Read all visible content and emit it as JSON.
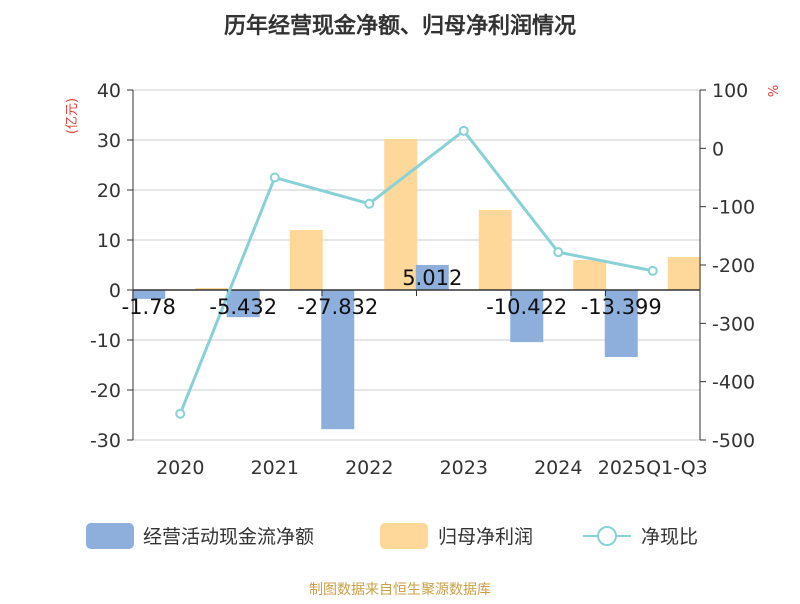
{
  "chart_data": {
    "type": "bar+line",
    "title": "历年经营现金净额、归母净利润情况",
    "categories": [
      "2020",
      "2021",
      "2022",
      "2023",
      "2024",
      "2025Q1-Q3"
    ],
    "series": [
      {
        "name": "经营活动现金流净额",
        "type": "bar",
        "axis": "left",
        "color": "#8eaedc",
        "values": [
          -1.78,
          -5.432,
          -27.832,
          5.012,
          -10.422,
          -13.399
        ],
        "labels": [
          "-1.78",
          "-5.432",
          "-27.832",
          "5.012",
          "-10.422",
          "-13.399"
        ]
      },
      {
        "name": "归母净利润",
        "type": "bar",
        "axis": "left",
        "color": "#fdd89a",
        "values": [
          0.4,
          12,
          30.2,
          16,
          6,
          6.6
        ]
      },
      {
        "name": "净现比",
        "type": "line",
        "axis": "right",
        "color": "#88d1d6",
        "values": [
          -455,
          -50,
          -95,
          30,
          -178,
          -210
        ]
      }
    ],
    "left_axis": {
      "unit": "(亿元)",
      "min": -30,
      "max": 40,
      "ticks": [
        -30,
        -20,
        -10,
        0,
        10,
        20,
        30,
        40
      ]
    },
    "right_axis": {
      "unit": "%",
      "min": -500,
      "max": 100,
      "ticks": [
        -500,
        -400,
        -300,
        -200,
        -100,
        0,
        100
      ]
    },
    "grid": true,
    "legend_position": "bottom"
  },
  "source_note": "制图数据来自恒生聚源数据库",
  "colors": {
    "unit_label": "#e03c3c",
    "source_note": "#c9a046",
    "axis": "#333333",
    "grid": "#cccccc",
    "text": "#333333"
  }
}
